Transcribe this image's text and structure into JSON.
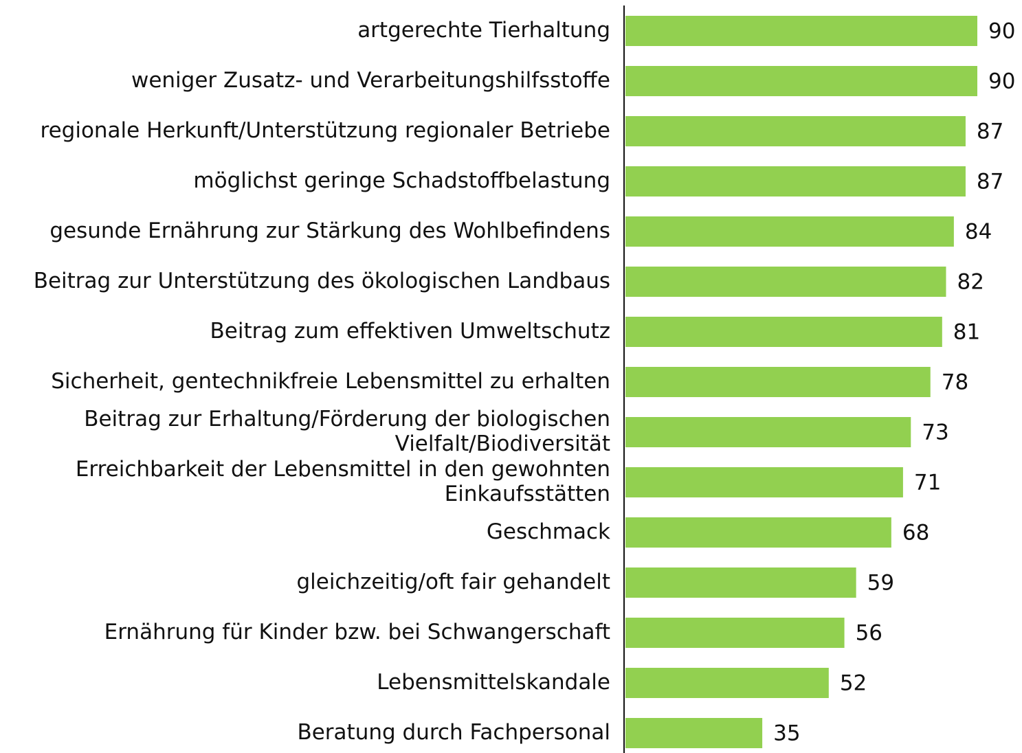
{
  "chart_data": {
    "type": "bar",
    "orientation": "horizontal",
    "color": "#92d050",
    "categories": [
      "artgerechte Tierhaltung",
      "weniger Zusatz- und Verarbeitungshilfsstoffe",
      "regionale Herkunft/Unterstützung regionaler Betriebe",
      "möglichst geringe Schadstoffbelastung",
      "gesunde Ernährung zur Stärkung des Wohlbefindens",
      "Beitrag zur Unterstützung des ökologischen Landbaus",
      "Beitrag zum effektiven Umweltschutz",
      "Sicherheit, gentechnikfreie Lebensmittel zu erhalten",
      "Beitrag zur Erhaltung/Förderung der biologischen\nVielfalt/Biodiversität",
      "Erreichbarkeit der Lebensmittel in den gewohnten\nEinkaufsstätten",
      "Geschmack",
      "gleichzeitig/oft fair gehandelt",
      "Ernährung für Kinder bzw. bei Schwangerschaft",
      "Lebensmittelskandale",
      "Beratung durch Fachpersonal"
    ],
    "values": [
      90,
      90,
      87,
      87,
      84,
      82,
      81,
      78,
      73,
      71,
      68,
      59,
      56,
      52,
      35
    ]
  }
}
